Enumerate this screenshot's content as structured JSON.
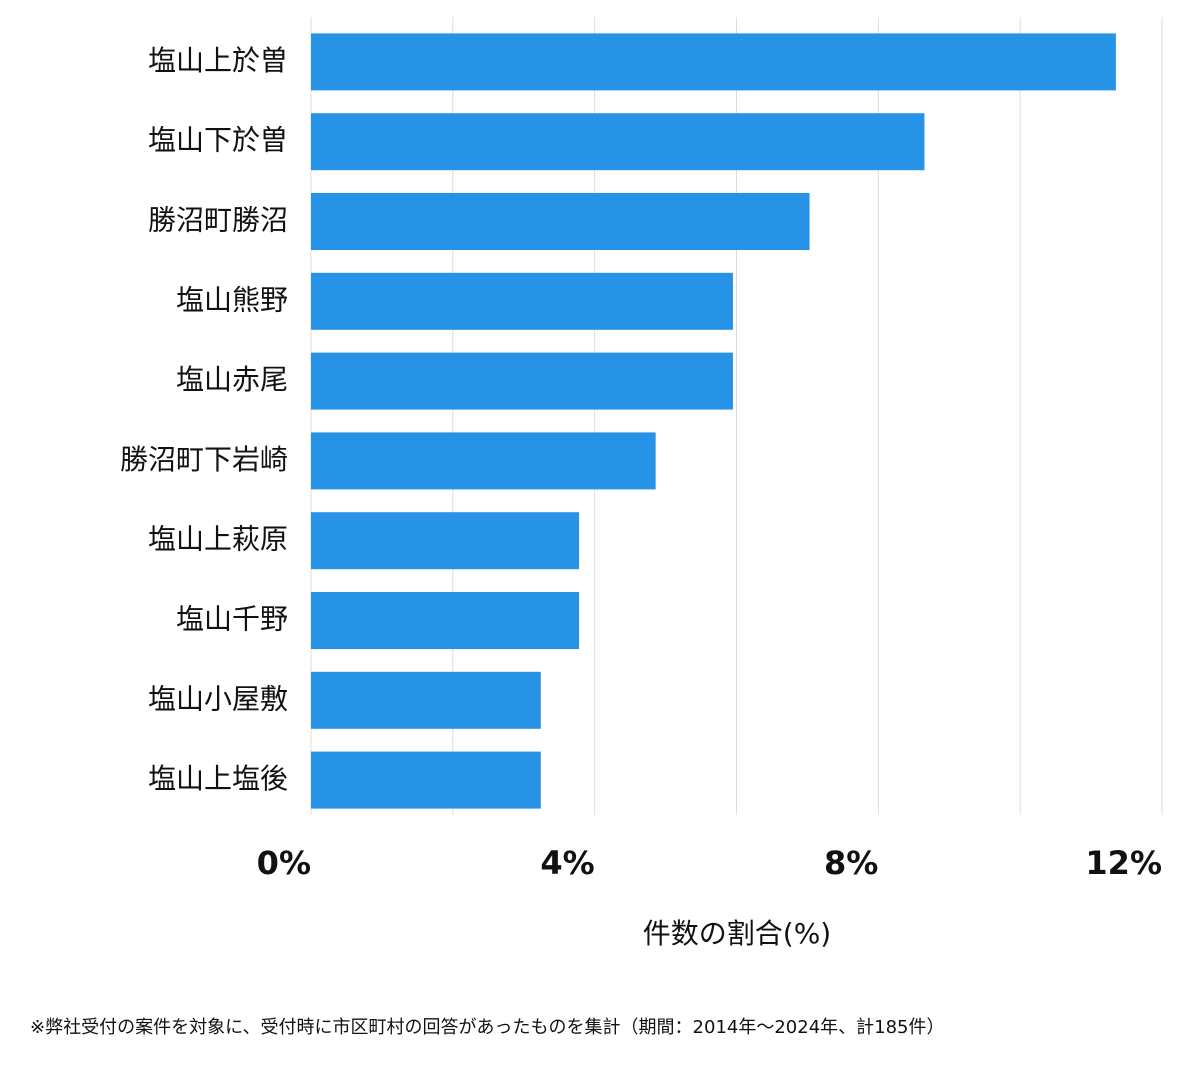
{
  "chart_data": {
    "type": "hbar",
    "orientation": "horizontal",
    "categories": [
      "塩山上於曽",
      "塩山下於曽",
      "勝沼町勝沼",
      "塩山熊野",
      "塩山赤尾",
      "勝沼町下岩崎",
      "塩山上萩原",
      "塩山千野",
      "塩山小屋敷",
      "塩山上塩後"
    ],
    "values": [
      11.35,
      8.65,
      7.03,
      5.95,
      5.95,
      4.86,
      3.78,
      3.78,
      3.24,
      3.24
    ],
    "color": "#2793e6",
    "xlim": [
      0,
      12
    ],
    "xticks": [
      {
        "value": 0,
        "label": "0%"
      },
      {
        "value": 4,
        "label": "4%"
      },
      {
        "value": 8,
        "label": "8%"
      },
      {
        "value": 12,
        "label": "12%"
      }
    ],
    "minor_grid": [
      2,
      6,
      10
    ],
    "grid": true,
    "x_label": "件数の割合(%)",
    "footnote": "※弊社受付の案件を対象に、受付時に市区町村の回答があったものを集計（期間：2014年～2024年、計185件）"
  }
}
